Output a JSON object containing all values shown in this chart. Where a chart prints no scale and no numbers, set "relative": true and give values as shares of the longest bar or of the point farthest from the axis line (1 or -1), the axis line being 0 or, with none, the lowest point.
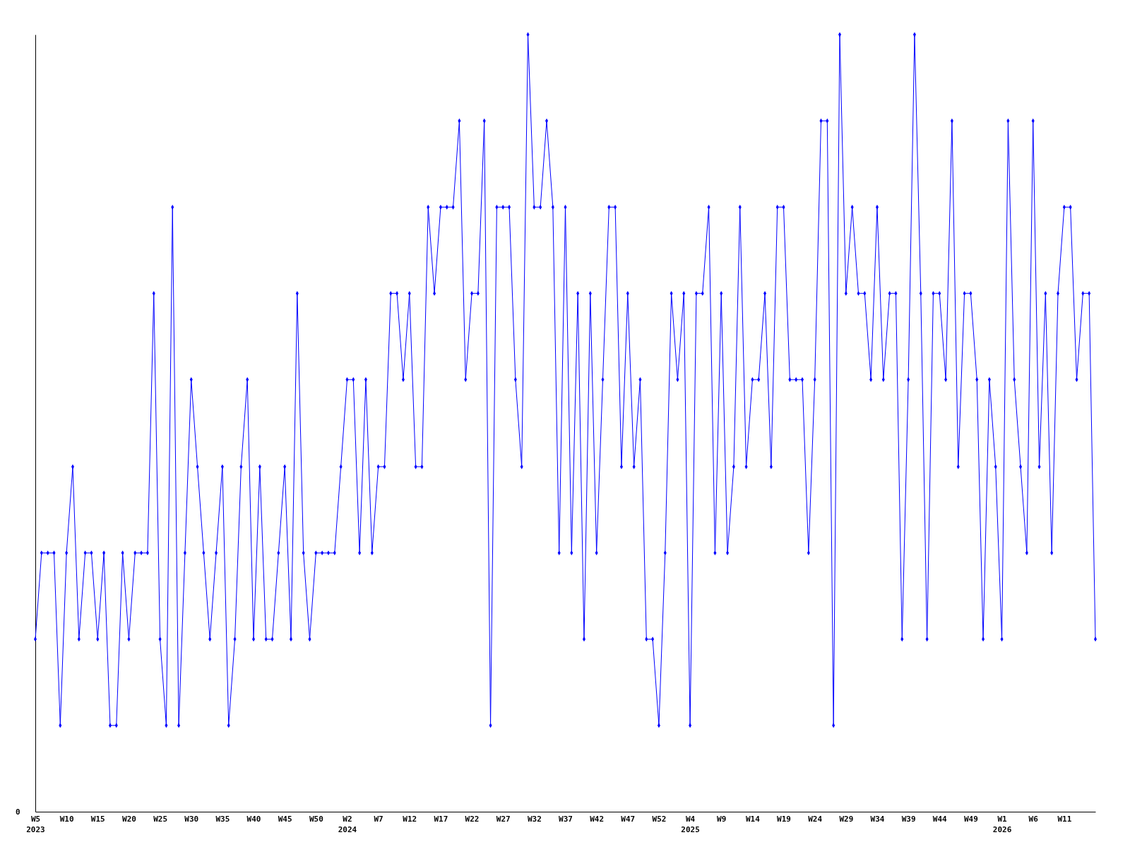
{
  "chart_data": {
    "type": "line",
    "relative": true,
    "marker": "diamond",
    "line_style": "solid",
    "annotations": [
      "0"
    ],
    "categories": [
      "W5\n2023",
      null,
      null,
      null,
      null,
      "W10",
      null,
      null,
      null,
      null,
      "W15",
      null,
      null,
      null,
      null,
      "W20",
      null,
      null,
      null,
      null,
      "W25",
      null,
      null,
      null,
      null,
      "W30",
      null,
      null,
      null,
      null,
      "W35",
      null,
      null,
      null,
      null,
      "W40",
      null,
      null,
      null,
      null,
      "W45",
      null,
      null,
      null,
      null,
      "W50",
      null,
      null,
      null,
      null,
      "W2\n2024",
      null,
      null,
      null,
      null,
      "W7",
      null,
      null,
      null,
      null,
      "W12",
      null,
      null,
      null,
      null,
      "W17",
      null,
      null,
      null,
      null,
      "W22",
      null,
      null,
      null,
      null,
      "W27",
      null,
      null,
      null,
      null,
      "W32",
      null,
      null,
      null,
      null,
      "W37",
      null,
      null,
      null,
      null,
      "W42",
      null,
      null,
      null,
      null,
      "W47",
      null,
      null,
      null,
      null,
      "W52",
      null,
      null,
      null,
      null,
      "W4\n2025",
      null,
      null,
      null,
      null,
      "W9",
      null,
      null,
      null,
      null,
      "W14",
      null,
      null,
      null,
      null,
      "W19",
      null,
      null,
      null,
      null,
      "W24",
      null,
      null,
      null,
      null,
      "W29",
      null,
      null,
      null,
      null,
      "W34",
      null,
      null,
      null,
      null,
      "W39",
      null,
      null,
      null,
      null,
      "W44",
      null,
      null,
      null,
      null,
      "W49",
      null,
      null,
      null,
      null,
      "W1\n2026",
      null,
      null,
      null,
      null,
      "W6",
      null,
      null,
      null,
      null,
      "W11",
      null,
      null,
      null,
      null,
      null
    ],
    "series": [
      {
        "color": "#0000ff",
        "values": [
          0.222,
          0.333,
          0.333,
          0.333,
          0.111,
          0.333,
          0.444,
          0.222,
          0.333,
          0.333,
          0.222,
          0.333,
          0.111,
          0.111,
          0.333,
          0.222,
          0.333,
          0.333,
          0.333,
          0.667,
          0.222,
          0.111,
          0.778,
          0.111,
          0.333,
          0.556,
          0.444,
          0.333,
          0.222,
          0.333,
          0.444,
          0.111,
          0.222,
          0.444,
          0.556,
          0.222,
          0.444,
          0.222,
          0.222,
          0.333,
          0.444,
          0.222,
          0.667,
          0.333,
          0.222,
          0.333,
          0.333,
          0.333,
          0.333,
          0.444,
          0.556,
          0.556,
          0.333,
          0.556,
          0.333,
          0.444,
          0.444,
          0.667,
          0.667,
          0.556,
          0.667,
          0.444,
          0.444,
          0.778,
          0.667,
          0.778,
          0.778,
          0.778,
          0.889,
          0.556,
          0.667,
          0.667,
          0.889,
          0.111,
          0.778,
          0.778,
          0.778,
          0.556,
          0.444,
          1,
          0.778,
          0.778,
          0.889,
          0.778,
          0.333,
          0.778,
          0.333,
          0.667,
          0.222,
          0.667,
          0.333,
          0.556,
          0.778,
          0.778,
          0.444,
          0.667,
          0.444,
          0.556,
          0.222,
          0.222,
          0.111,
          0.333,
          0.667,
          0.556,
          0.667,
          0.111,
          0.667,
          0.667,
          0.778,
          0.333,
          0.667,
          0.333,
          0.444,
          0.778,
          0.444,
          0.556,
          0.556,
          0.667,
          0.444,
          0.778,
          0.778,
          0.556,
          0.556,
          0.556,
          0.333,
          0.556,
          0.889,
          0.889,
          0.111,
          1,
          0.667,
          0.778,
          0.667,
          0.667,
          0.556,
          0.778,
          0.556,
          0.667,
          0.667,
          0.222,
          0.556,
          1,
          0.667,
          0.222,
          0.667,
          0.667,
          0.556,
          0.889,
          0.444,
          0.667,
          0.667,
          0.556,
          0.222,
          0.556,
          0.444,
          0.222,
          0.889,
          0.556,
          0.444,
          0.333,
          0.889,
          0.444,
          0.667,
          0.333,
          0.667,
          0.778,
          0.778,
          0.556,
          0.667,
          0.667,
          0.222
        ]
      }
    ]
  }
}
